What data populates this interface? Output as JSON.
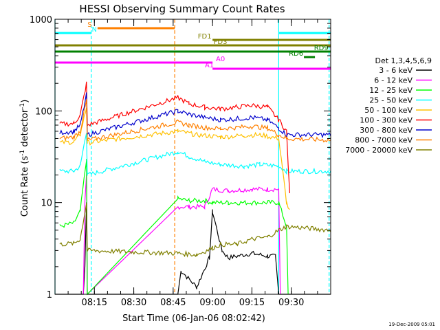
{
  "chart_data": {
    "type": "line",
    "title": "HESSI Observing Summary Count Rates",
    "xlabel": "Start Time (06-Jan-06 08:02:42)",
    "ylabel_parts": [
      "Count Rate (s",
      "-1",
      " detector",
      "-1",
      ")"
    ],
    "yscale": "log",
    "ylim": [
      1,
      1000
    ],
    "xlim_minutes": [
      8.0,
      9.75
    ],
    "x_ticks": [
      {
        "h": 8.25,
        "label": "08:15"
      },
      {
        "h": 8.5,
        "label": "08:30"
      },
      {
        "h": 8.75,
        "label": "08:45"
      },
      {
        "h": 9.0,
        "label": "09:00"
      },
      {
        "h": 9.25,
        "label": "09:15"
      },
      {
        "h": 9.5,
        "label": "09:30"
      }
    ],
    "y_ticks": [
      {
        "v": 1,
        "label": "1"
      },
      {
        "v": 10,
        "label": "10"
      },
      {
        "v": 100,
        "label": "100"
      },
      {
        "v": 1000,
        "label": "1000"
      }
    ],
    "timestamp": "19-Dec-2009 05:01",
    "legend_title": "Det 1,3,4,5,6,9",
    "series": [
      {
        "name": "3 - 6 keV",
        "color": "#000000",
        "points": [
          [
            8.0,
            1.0
          ],
          [
            8.18,
            1.0
          ],
          [
            8.19,
            2.0
          ],
          [
            8.2,
            10.0
          ],
          [
            8.205,
            1.0
          ],
          [
            8.78,
            1.0
          ],
          [
            8.8,
            1.8
          ],
          [
            8.9,
            1.2
          ],
          [
            8.98,
            2.5
          ],
          [
            9.0,
            8.0
          ],
          [
            9.06,
            3.0
          ],
          [
            9.1,
            2.5
          ],
          [
            9.25,
            2.8
          ],
          [
            9.35,
            2.6
          ],
          [
            9.4,
            2.6
          ],
          [
            9.42,
            1.0
          ],
          [
            9.75,
            1.0
          ]
        ]
      },
      {
        "name": "6 - 12 keV",
        "color": "#ff00ff",
        "points": [
          [
            8.18,
            1.0
          ],
          [
            8.19,
            10.0
          ],
          [
            8.2,
            20.0
          ],
          [
            8.205,
            1.0
          ],
          [
            8.78,
            9.0
          ],
          [
            8.85,
            9.0
          ],
          [
            8.95,
            9.0
          ],
          [
            9.0,
            14.0
          ],
          [
            9.1,
            13.5
          ],
          [
            9.25,
            14.0
          ],
          [
            9.35,
            14.0
          ],
          [
            9.42,
            14.0
          ],
          [
            9.43,
            1.0
          ]
        ]
      },
      {
        "name": "12 - 25 keV",
        "color": "#00ff00",
        "points": [
          [
            8.03,
            5.5
          ],
          [
            8.12,
            6.0
          ],
          [
            8.16,
            8.0
          ],
          [
            8.2,
            30.0
          ],
          [
            8.205,
            1.0
          ],
          [
            8.78,
            11.0
          ],
          [
            8.85,
            10.5
          ],
          [
            8.95,
            10.5
          ],
          [
            9.0,
            10.0
          ],
          [
            9.1,
            10.0
          ],
          [
            9.25,
            10.0
          ],
          [
            9.35,
            10.0
          ],
          [
            9.42,
            10.0
          ],
          [
            9.47,
            5.5
          ],
          [
            9.48,
            1.0
          ]
        ]
      },
      {
        "name": "25 - 50 keV",
        "color": "#00ffff",
        "points": [
          [
            8.03,
            22.0
          ],
          [
            8.12,
            22.0
          ],
          [
            8.16,
            25.0
          ],
          [
            8.2,
            60.0
          ],
          [
            8.205,
            20.0
          ],
          [
            8.78,
            36.0
          ],
          [
            8.85,
            32.0
          ],
          [
            8.95,
            28.0
          ],
          [
            9.05,
            26.0
          ],
          [
            9.2,
            25.0
          ],
          [
            9.3,
            26.0
          ],
          [
            9.42,
            25.0
          ],
          [
            9.47,
            22.0
          ],
          [
            9.75,
            22.0
          ]
        ]
      },
      {
        "name": "50 - 100 keV",
        "color": "#ffc000",
        "points": [
          [
            8.03,
            45.0
          ],
          [
            8.12,
            46.0
          ],
          [
            8.16,
            55.0
          ],
          [
            8.2,
            110.0
          ],
          [
            8.205,
            45.0
          ],
          [
            8.78,
            60.0
          ],
          [
            8.9,
            55.0
          ],
          [
            9.05,
            52.0
          ],
          [
            9.2,
            54.0
          ],
          [
            9.3,
            55.0
          ],
          [
            9.42,
            50.0
          ],
          [
            9.47,
            10.0
          ],
          [
            9.49,
            8.0
          ]
        ]
      },
      {
        "name": "100 - 300 keV",
        "color": "#ff0000",
        "points": [
          [
            8.03,
            72.0
          ],
          [
            8.12,
            73.0
          ],
          [
            8.16,
            90.0
          ],
          [
            8.2,
            200.0
          ],
          [
            8.205,
            70.0
          ],
          [
            8.78,
            140.0
          ],
          [
            8.85,
            120.0
          ],
          [
            8.95,
            110.0
          ],
          [
            9.05,
            105.0
          ],
          [
            9.15,
            110.0
          ],
          [
            9.25,
            115.0
          ],
          [
            9.35,
            110.0
          ],
          [
            9.42,
            80.0
          ],
          [
            9.47,
            60.0
          ],
          [
            9.49,
            12.0
          ]
        ]
      },
      {
        "name": "300 - 800 keV",
        "color": "#0000cc",
        "points": [
          [
            8.03,
            58.0
          ],
          [
            8.12,
            60.0
          ],
          [
            8.16,
            70.0
          ],
          [
            8.2,
            150.0
          ],
          [
            8.205,
            55.0
          ],
          [
            8.78,
            100.0
          ],
          [
            8.85,
            92.0
          ],
          [
            8.95,
            85.0
          ],
          [
            9.05,
            80.0
          ],
          [
            9.15,
            82.0
          ],
          [
            9.25,
            85.0
          ],
          [
            9.35,
            80.0
          ],
          [
            9.42,
            65.0
          ],
          [
            9.47,
            55.0
          ],
          [
            9.75,
            55.0
          ]
        ]
      },
      {
        "name": "800 - 7000 keV",
        "color": "#ff8000",
        "points": [
          [
            8.03,
            50.0
          ],
          [
            8.12,
            52.0
          ],
          [
            8.16,
            60.0
          ],
          [
            8.2,
            130.0
          ],
          [
            8.205,
            48.0
          ],
          [
            8.78,
            75.0
          ],
          [
            8.85,
            70.0
          ],
          [
            8.95,
            66.0
          ],
          [
            9.05,
            64.0
          ],
          [
            9.15,
            66.0
          ],
          [
            9.25,
            68.0
          ],
          [
            9.35,
            65.0
          ],
          [
            9.42,
            55.0
          ],
          [
            9.47,
            50.0
          ],
          [
            9.75,
            48.0
          ]
        ]
      },
      {
        "name": "7000 - 20000 keV",
        "color": "#808000",
        "points": [
          [
            8.03,
            3.5
          ],
          [
            8.12,
            3.6
          ],
          [
            8.16,
            4.0
          ],
          [
            8.2,
            10.0
          ],
          [
            8.205,
            3.0
          ],
          [
            8.78,
            2.8
          ],
          [
            8.9,
            2.7
          ],
          [
            9.0,
            3.2
          ],
          [
            9.05,
            3.5
          ],
          [
            9.15,
            3.5
          ],
          [
            9.25,
            4.0
          ],
          [
            9.35,
            4.2
          ],
          [
            9.42,
            5.0
          ],
          [
            9.47,
            5.5
          ],
          [
            9.75,
            5.0
          ]
        ]
      }
    ],
    "flag_bars": [
      {
        "label": "S",
        "color": "#ff8000",
        "row": 0,
        "from": 8.27,
        "to": 8.76
      },
      {
        "label": "N",
        "color": "#00ffff",
        "row": 1,
        "from": 8.0,
        "to": 8.23
      },
      {
        "label": "N",
        "color": "#00ffff",
        "row": 1,
        "from": 9.42,
        "to": 9.75
      },
      {
        "label": "FD1",
        "color": "#808000",
        "row": 2,
        "from": 9.0,
        "to": 9.75
      },
      {
        "label": "FD3",
        "color": "#808000",
        "row": 3,
        "from": 8.0,
        "to": 9.75
      },
      {
        "label": "RD9",
        "color": "#008000",
        "row": 4,
        "from": 8.0,
        "to": 9.75
      },
      {
        "label": "RD6",
        "color": "#008000",
        "row": 5,
        "from": 9.58,
        "to": 9.65
      },
      {
        "label": "A0",
        "color": "#ff00ff",
        "row": 6,
        "from": 8.0,
        "to": 9.0
      },
      {
        "label": "A1",
        "color": "#ff00ff",
        "row": 7,
        "from": 9.0,
        "to": 9.75
      }
    ],
    "vlines": [
      {
        "h": 8.0,
        "color": "#00ffff",
        "dash": false
      },
      {
        "h": 8.23,
        "color": "#00ffff",
        "dash": true
      },
      {
        "h": 8.76,
        "color": "#ff8000",
        "dash": true
      },
      {
        "h": 9.42,
        "color": "#00ffff",
        "dash": false
      },
      {
        "h": 9.74,
        "color": "#00ffff",
        "dash": true
      }
    ]
  }
}
